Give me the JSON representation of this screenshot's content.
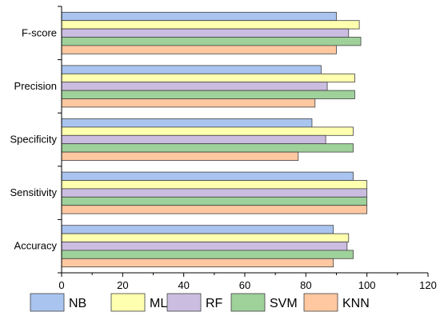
{
  "colors": {
    "NB": "#a9c4ef",
    "MLP": "#ffffb0",
    "RF": "#cbbde0",
    "SVM": "#9fd19b",
    "KNN": "#ffc8a0",
    "axis": "#000000",
    "bar_stroke": "#404040"
  },
  "chart_data": {
    "type": "bar",
    "orientation": "horizontal",
    "title": "",
    "xlabel": "",
    "ylabel": "",
    "xlim": [
      0,
      120
    ],
    "x_ticks": [
      "0",
      "20",
      "40",
      "60",
      "80",
      "100",
      "120"
    ],
    "grid": false,
    "legend_position": "bottom",
    "categories": [
      "Accuracy",
      "Sensitivity",
      "Specificity",
      "Precision",
      "F-score"
    ],
    "series": [
      {
        "name": "NB",
        "values": [
          89,
          95.5,
          82,
          85,
          90
        ]
      },
      {
        "name": "MLP",
        "values": [
          94,
          100,
          95.5,
          96,
          97.5
        ]
      },
      {
        "name": "RF",
        "values": [
          93.5,
          100,
          86.5,
          87,
          94
        ]
      },
      {
        "name": "SVM",
        "values": [
          95.5,
          100,
          95.5,
          96,
          98
        ]
      },
      {
        "name": "KNN",
        "values": [
          89,
          100,
          77.5,
          83,
          90
        ]
      }
    ]
  }
}
